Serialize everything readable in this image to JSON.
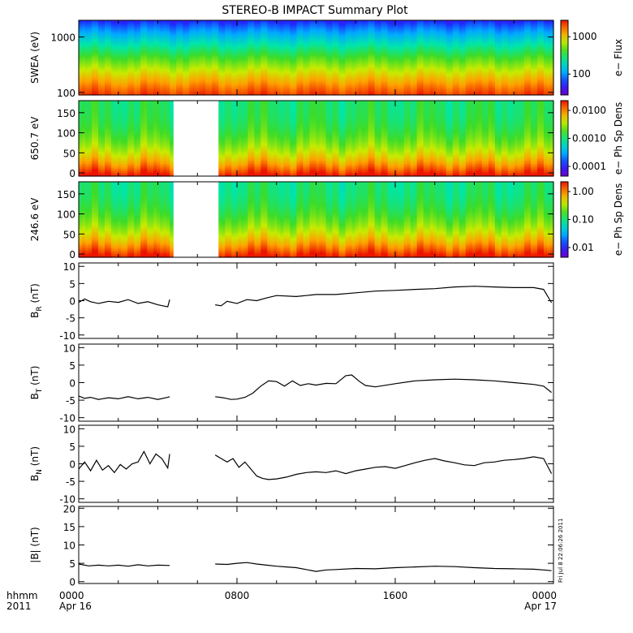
{
  "title": "STEREO-B IMPACT Summary Plot",
  "footer": {
    "left_top": "hhmm",
    "left_bottom": "2011",
    "ticks": [
      {
        "hour": 0,
        "top": "0000",
        "bottom": "Apr 16"
      },
      {
        "hour": 8,
        "top": "0800",
        "bottom": ""
      },
      {
        "hour": 16,
        "top": "1600",
        "bottom": ""
      },
      {
        "hour": 24,
        "top": "0000",
        "bottom": "Apr 17"
      }
    ]
  },
  "timestamp": "Fri Jul 8 22:06:26 2011",
  "chart_data": [
    {
      "type": "heatmap",
      "ylabel": "SWEA (eV)",
      "yscale": "log",
      "ylim": [
        90,
        2000
      ],
      "ytick_labels": [
        "1000",
        "100"
      ],
      "ytick_values": [
        1000,
        100
      ],
      "colorbar": {
        "label": "e− Flux",
        "scale": "log",
        "tick_labels": [
          "1000",
          "100"
        ]
      },
      "data_gaps_hours": []
    },
    {
      "type": "heatmap",
      "ylabel": "650.7 eV",
      "ylim": [
        -8,
        180
      ],
      "ytick_labels": [
        "150",
        "100",
        "50",
        "0"
      ],
      "ytick_values": [
        150,
        100,
        50,
        0
      ],
      "colorbar": {
        "label": "e− Ph Sp Dens",
        "scale": "log",
        "tick_labels": [
          "0.0100",
          "0.0010",
          "0.0001"
        ]
      },
      "data_gaps_hours": [
        [
          4.8,
          7.0
        ]
      ]
    },
    {
      "type": "heatmap",
      "ylabel": "246.6 eV",
      "ylim": [
        -8,
        180
      ],
      "ytick_labels": [
        "150",
        "100",
        "50",
        "0"
      ],
      "ytick_values": [
        150,
        100,
        50,
        0
      ],
      "colorbar": {
        "label": "e− Ph Sp Dens",
        "scale": "log",
        "tick_labels": [
          "1.00",
          "0.10",
          "0.01"
        ]
      },
      "data_gaps_hours": [
        [
          4.8,
          7.0
        ]
      ]
    },
    {
      "type": "line",
      "ylabel": "B_R (nT)",
      "ylabel_main": "B",
      "ylabel_sub": "R",
      "ylabel_unit": " (nT)",
      "ylim": [
        -11,
        11
      ],
      "ytick_labels": [
        "10",
        "5",
        "0",
        "-5",
        "-10"
      ],
      "ytick_values": [
        10,
        5,
        0,
        -5,
        -10
      ],
      "segments": [
        {
          "x": [
            0.0,
            0.3,
            0.6,
            1.0,
            1.5,
            2.0,
            2.5,
            3.0,
            3.5,
            4.0,
            4.5,
            4.6
          ],
          "y": [
            -0.5,
            0.5,
            -0.3,
            -0.8,
            -0.2,
            -0.5,
            0.3,
            -0.8,
            -0.3,
            -1.2,
            -1.8,
            0.3
          ]
        },
        {
          "x": [
            6.9,
            7.2,
            7.5,
            8.0,
            8.5,
            9.0,
            9.5,
            10.0,
            11.0,
            12.0,
            13.0,
            14.0,
            15.0,
            16.0,
            17.0,
            18.0,
            19.0,
            20.0,
            21.0,
            22.0,
            23.0,
            23.5,
            23.9
          ],
          "y": [
            -1.2,
            -1.5,
            -0.2,
            -0.8,
            0.3,
            0.0,
            0.8,
            1.5,
            1.2,
            1.8,
            1.8,
            2.3,
            2.8,
            3.0,
            3.3,
            3.5,
            4.0,
            4.2,
            4.0,
            3.8,
            3.8,
            3.3,
            -0.6
          ]
        }
      ]
    },
    {
      "type": "line",
      "ylabel": "B_T (nT)",
      "ylabel_main": "B",
      "ylabel_sub": "T",
      "ylabel_unit": " (nT)",
      "ylim": [
        -11,
        11
      ],
      "ytick_labels": [
        "10",
        "5",
        "0",
        "-5",
        "-10"
      ],
      "ytick_values": [
        10,
        5,
        0,
        -5,
        -10
      ],
      "segments": [
        {
          "x": [
            0.0,
            0.3,
            0.6,
            1.0,
            1.5,
            2.0,
            2.5,
            3.0,
            3.5,
            4.0,
            4.5,
            4.6
          ],
          "y": [
            -3.8,
            -4.5,
            -4.2,
            -4.8,
            -4.3,
            -4.6,
            -4.0,
            -4.6,
            -4.2,
            -4.8,
            -4.2,
            -4.0
          ]
        },
        {
          "x": [
            6.9,
            7.3,
            7.7,
            8.0,
            8.4,
            8.8,
            9.2,
            9.6,
            10.0,
            10.4,
            10.8,
            11.2,
            11.6,
            12.0,
            12.5,
            13.0,
            13.5,
            13.8,
            14.2,
            14.5,
            15.0,
            16.0,
            17.0,
            18.0,
            19.0,
            20.0,
            21.0,
            22.0,
            23.0,
            23.5,
            23.9
          ],
          "y": [
            -4.0,
            -4.3,
            -4.8,
            -4.7,
            -4.2,
            -3.0,
            -1.0,
            0.5,
            0.3,
            -1.0,
            0.5,
            -0.8,
            -0.3,
            -0.7,
            -0.2,
            -0.3,
            2.0,
            2.2,
            0.3,
            -0.8,
            -1.2,
            -0.3,
            0.5,
            0.8,
            1.0,
            0.8,
            0.5,
            0.0,
            -0.5,
            -1.0,
            -2.8
          ]
        }
      ]
    },
    {
      "type": "line",
      "ylabel": "B_N (nT)",
      "ylabel_main": "B",
      "ylabel_sub": "N",
      "ylabel_unit": " (nT)",
      "ylim": [
        -11,
        11
      ],
      "ytick_labels": [
        "10",
        "5",
        "0",
        "-5",
        "-10"
      ],
      "ytick_values": [
        10,
        5,
        0,
        -5,
        -10
      ],
      "segments": [
        {
          "x": [
            0.0,
            0.3,
            0.6,
            0.9,
            1.2,
            1.5,
            1.8,
            2.1,
            2.4,
            2.7,
            3.0,
            3.3,
            3.6,
            3.9,
            4.2,
            4.5,
            4.6
          ],
          "y": [
            -1.5,
            0.5,
            -2.0,
            1.0,
            -1.8,
            -0.5,
            -2.5,
            -0.2,
            -1.5,
            0.0,
            0.5,
            3.5,
            0.0,
            2.8,
            1.5,
            -1.2,
            2.8
          ]
        },
        {
          "x": [
            6.9,
            7.2,
            7.5,
            7.8,
            8.1,
            8.4,
            8.7,
            9.0,
            9.3,
            9.6,
            10.0,
            10.5,
            11.0,
            11.5,
            12.0,
            12.5,
            13.0,
            13.5,
            14.0,
            14.5,
            15.0,
            15.5,
            16.0,
            16.5,
            17.0,
            17.5,
            18.0,
            18.5,
            19.0,
            19.5,
            20.0,
            20.5,
            21.0,
            21.5,
            22.0,
            22.5,
            23.0,
            23.5,
            23.9
          ],
          "y": [
            2.5,
            1.5,
            0.5,
            1.5,
            -1.0,
            0.5,
            -1.5,
            -3.5,
            -4.2,
            -4.5,
            -4.3,
            -3.8,
            -3.0,
            -2.5,
            -2.3,
            -2.5,
            -2.0,
            -2.8,
            -2.0,
            -1.5,
            -1.0,
            -0.8,
            -1.3,
            -0.5,
            0.3,
            1.0,
            1.5,
            0.8,
            0.3,
            -0.3,
            -0.5,
            0.3,
            0.5,
            1.0,
            1.2,
            1.5,
            2.0,
            1.5,
            -2.8
          ]
        }
      ]
    },
    {
      "type": "line",
      "ylabel": "|B| (nT)",
      "ylabel_main": "|B|",
      "ylabel_sub": "",
      "ylabel_unit": " (nT)",
      "ylim": [
        -0.5,
        20.5
      ],
      "ytick_labels": [
        "20",
        "15",
        "10",
        "5",
        "0"
      ],
      "ytick_values": [
        20,
        15,
        10,
        5,
        0
      ],
      "segments": [
        {
          "x": [
            0.0,
            0.5,
            1.0,
            1.5,
            2.0,
            2.5,
            3.0,
            3.5,
            4.0,
            4.6
          ],
          "y": [
            4.8,
            4.3,
            4.5,
            4.3,
            4.5,
            4.2,
            4.6,
            4.3,
            4.5,
            4.4
          ]
        },
        {
          "x": [
            6.9,
            7.5,
            8.0,
            8.5,
            9.0,
            9.5,
            10.0,
            10.5,
            11.0,
            11.5,
            12.0,
            12.5,
            13.0,
            14.0,
            15.0,
            16.0,
            17.0,
            18.0,
            19.0,
            20.0,
            21.0,
            22.0,
            23.0,
            23.5,
            23.9
          ],
          "y": [
            4.8,
            4.7,
            5.0,
            5.2,
            4.8,
            4.5,
            4.2,
            4.0,
            3.8,
            3.3,
            2.8,
            3.2,
            3.3,
            3.6,
            3.5,
            3.8,
            4.0,
            4.2,
            4.1,
            3.8,
            3.6,
            3.5,
            3.4,
            3.2,
            3.0
          ]
        }
      ]
    }
  ]
}
